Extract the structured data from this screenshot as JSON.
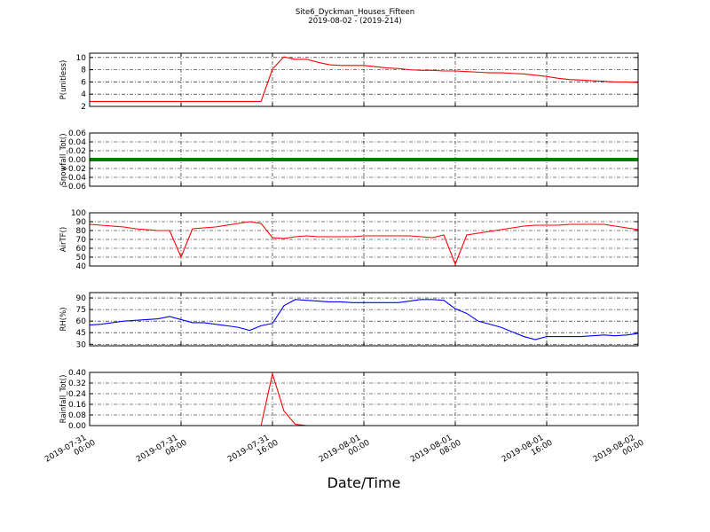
{
  "title": "Site6_Dyckman_Houses_Fifteen",
  "subtitle": "2019-08-02 - (2019-214)",
  "xlabel": "Date/Time",
  "chart_data": [
    {
      "type": "line",
      "ylabel": "P(unitless)",
      "xlim": [
        "2019-07-31 00:00",
        "2019-08-02 00:00"
      ],
      "ylim": [
        2,
        10.7
      ],
      "yticks": [
        2,
        4,
        6,
        8,
        10
      ],
      "grid": true,
      "x": [
        "2019-07-31 00:00",
        "2019-07-31 01:00",
        "2019-07-31 02:00",
        "2019-07-31 03:00",
        "2019-07-31 04:00",
        "2019-07-31 05:00",
        "2019-07-31 06:00",
        "2019-07-31 07:00",
        "2019-07-31 08:00",
        "2019-07-31 09:00",
        "2019-07-31 10:00",
        "2019-07-31 11:00",
        "2019-07-31 12:00",
        "2019-07-31 13:00",
        "2019-07-31 14:00",
        "2019-07-31 15:00",
        "2019-07-31 16:00",
        "2019-07-31 17:00",
        "2019-07-31 18:00",
        "2019-07-31 19:00",
        "2019-07-31 20:00",
        "2019-07-31 21:00",
        "2019-07-31 22:00",
        "2019-07-31 23:00",
        "2019-08-01 00:00",
        "2019-08-01 01:00",
        "2019-08-01 02:00",
        "2019-08-01 03:00",
        "2019-08-01 04:00",
        "2019-08-01 05:00",
        "2019-08-01 06:00",
        "2019-08-01 07:00",
        "2019-08-01 08:00",
        "2019-08-01 09:00",
        "2019-08-01 10:00",
        "2019-08-01 11:00",
        "2019-08-01 12:00",
        "2019-08-01 13:00",
        "2019-08-01 14:00",
        "2019-08-01 15:00",
        "2019-08-01 16:00",
        "2019-08-01 17:00",
        "2019-08-01 18:00",
        "2019-08-01 19:00",
        "2019-08-01 20:00",
        "2019-08-01 21:00",
        "2019-08-01 22:00",
        "2019-08-01 23:00",
        "2019-08-02 00:00"
      ],
      "series": [
        {
          "color": "#ff0000",
          "values": [
            2.8,
            2.8,
            2.8,
            2.8,
            2.8,
            2.8,
            2.8,
            2.8,
            2.8,
            2.8,
            2.8,
            2.8,
            2.8,
            2.8,
            2.8,
            2.8,
            8.1,
            10.1,
            9.7,
            9.7,
            9.2,
            8.8,
            8.7,
            8.7,
            8.7,
            8.5,
            8.3,
            8.2,
            8.0,
            7.9,
            7.9,
            7.8,
            7.8,
            7.7,
            7.6,
            7.5,
            7.5,
            7.4,
            7.3,
            7.1,
            6.9,
            6.6,
            6.4,
            6.3,
            6.2,
            6.1,
            6.0,
            6.0,
            5.9
          ]
        }
      ]
    },
    {
      "type": "line",
      "ylabel": "Snowfall_Tot()",
      "xlim": [
        "2019-07-31 00:00",
        "2019-08-02 00:00"
      ],
      "ylim": [
        -0.06,
        0.06
      ],
      "yticks": [
        {
          "value": -0.06,
          "label": "−0.06"
        },
        {
          "value": -0.04,
          "label": "−0.04"
        },
        {
          "value": -0.02,
          "label": "−0.02"
        },
        {
          "value": 0,
          "label": "0.00"
        },
        0.02,
        0.04,
        0.06
      ],
      "grid": true,
      "x": [
        "2019-07-31 00:00",
        "2019-07-31 01:00",
        "2019-07-31 02:00",
        "2019-07-31 03:00",
        "2019-07-31 04:00",
        "2019-07-31 05:00",
        "2019-07-31 06:00",
        "2019-07-31 07:00",
        "2019-07-31 08:00",
        "2019-07-31 09:00",
        "2019-07-31 10:00",
        "2019-07-31 11:00",
        "2019-07-31 12:00",
        "2019-07-31 13:00",
        "2019-07-31 14:00",
        "2019-07-31 15:00",
        "2019-07-31 16:00",
        "2019-07-31 17:00",
        "2019-07-31 18:00",
        "2019-07-31 19:00",
        "2019-07-31 20:00",
        "2019-07-31 21:00",
        "2019-07-31 22:00",
        "2019-07-31 23:00",
        "2019-08-01 00:00",
        "2019-08-01 01:00",
        "2019-08-01 02:00",
        "2019-08-01 03:00",
        "2019-08-01 04:00",
        "2019-08-01 05:00",
        "2019-08-01 06:00",
        "2019-08-01 07:00",
        "2019-08-01 08:00",
        "2019-08-01 09:00",
        "2019-08-01 10:00",
        "2019-08-01 11:00",
        "2019-08-01 12:00",
        "2019-08-01 13:00",
        "2019-08-01 14:00",
        "2019-08-01 15:00",
        "2019-08-01 16:00",
        "2019-08-01 17:00",
        "2019-08-01 18:00",
        "2019-08-01 19:00",
        "2019-08-01 20:00",
        "2019-08-01 21:00",
        "2019-08-01 22:00",
        "2019-08-01 23:00",
        "2019-08-02 00:00"
      ],
      "series": [
        {
          "color": "#007f00",
          "values": [
            0,
            0,
            0,
            0,
            0,
            0,
            0,
            0,
            0,
            0,
            0,
            0,
            0,
            0,
            0,
            0,
            0,
            0,
            0,
            0,
            0,
            0,
            0,
            0,
            0,
            0,
            0,
            0,
            0,
            0,
            0,
            0,
            0,
            0,
            0,
            0,
            0,
            0,
            0,
            0,
            0,
            0,
            0,
            0,
            0,
            0,
            0,
            0,
            0
          ]
        }
      ]
    },
    {
      "type": "line",
      "ylabel": "AirTF()",
      "xlim": [
        "2019-07-31 00:00",
        "2019-08-02 00:00"
      ],
      "ylim": [
        40,
        100
      ],
      "yticks": [
        40,
        50,
        60,
        70,
        80,
        90,
        100
      ],
      "grid": true,
      "x": [
        "2019-07-31 00:00",
        "2019-07-31 01:00",
        "2019-07-31 02:00",
        "2019-07-31 03:00",
        "2019-07-31 04:00",
        "2019-07-31 05:00",
        "2019-07-31 06:00",
        "2019-07-31 07:00",
        "2019-07-31 08:00",
        "2019-07-31 09:00",
        "2019-07-31 10:00",
        "2019-07-31 11:00",
        "2019-07-31 12:00",
        "2019-07-31 13:00",
        "2019-07-31 14:00",
        "2019-07-31 15:00",
        "2019-07-31 16:00",
        "2019-07-31 17:00",
        "2019-07-31 18:00",
        "2019-07-31 19:00",
        "2019-07-31 20:00",
        "2019-07-31 21:00",
        "2019-07-31 22:00",
        "2019-07-31 23:00",
        "2019-08-01 00:00",
        "2019-08-01 01:00",
        "2019-08-01 02:00",
        "2019-08-01 03:00",
        "2019-08-01 04:00",
        "2019-08-01 05:00",
        "2019-08-01 06:00",
        "2019-08-01 07:00",
        "2019-08-01 08:00",
        "2019-08-01 09:00",
        "2019-08-01 10:00",
        "2019-08-01 11:00",
        "2019-08-01 12:00",
        "2019-08-01 13:00",
        "2019-08-01 14:00",
        "2019-08-01 15:00",
        "2019-08-01 16:00",
        "2019-08-01 17:00",
        "2019-08-01 18:00",
        "2019-08-01 19:00",
        "2019-08-01 20:00",
        "2019-08-01 21:00",
        "2019-08-01 22:00",
        "2019-08-01 23:00",
        "2019-08-02 00:00"
      ],
      "series": [
        {
          "color": "#ff0000",
          "values": [
            87,
            86,
            85,
            84,
            82,
            81,
            80,
            80,
            50,
            82,
            83,
            84,
            86,
            88,
            90,
            88,
            72,
            71,
            73,
            74,
            73,
            73,
            73,
            73,
            74,
            74,
            74,
            74,
            74,
            73,
            72,
            75,
            42,
            75,
            77,
            79,
            81,
            83,
            85,
            86,
            86,
            86,
            87,
            87,
            87,
            87,
            85,
            83,
            81
          ]
        }
      ]
    },
    {
      "type": "line",
      "ylabel": "RH(%)",
      "xlim": [
        "2019-07-31 00:00",
        "2019-08-02 00:00"
      ],
      "ylim": [
        28,
        97
      ],
      "yticks": [
        30,
        45,
        60,
        75,
        90
      ],
      "grid": true,
      "x": [
        "2019-07-31 00:00",
        "2019-07-31 01:00",
        "2019-07-31 02:00",
        "2019-07-31 03:00",
        "2019-07-31 04:00",
        "2019-07-31 05:00",
        "2019-07-31 06:00",
        "2019-07-31 07:00",
        "2019-07-31 08:00",
        "2019-07-31 09:00",
        "2019-07-31 10:00",
        "2019-07-31 11:00",
        "2019-07-31 12:00",
        "2019-07-31 13:00",
        "2019-07-31 14:00",
        "2019-07-31 15:00",
        "2019-07-31 16:00",
        "2019-07-31 17:00",
        "2019-07-31 18:00",
        "2019-07-31 19:00",
        "2019-07-31 20:00",
        "2019-07-31 21:00",
        "2019-07-31 22:00",
        "2019-07-31 23:00",
        "2019-08-01 00:00",
        "2019-08-01 01:00",
        "2019-08-01 02:00",
        "2019-08-01 03:00",
        "2019-08-01 04:00",
        "2019-08-01 05:00",
        "2019-08-01 06:00",
        "2019-08-01 07:00",
        "2019-08-01 08:00",
        "2019-08-01 09:00",
        "2019-08-01 10:00",
        "2019-08-01 11:00",
        "2019-08-01 12:00",
        "2019-08-01 13:00",
        "2019-08-01 14:00",
        "2019-08-01 15:00",
        "2019-08-01 16:00",
        "2019-08-01 17:00",
        "2019-08-01 18:00",
        "2019-08-01 19:00",
        "2019-08-01 20:00",
        "2019-08-01 21:00",
        "2019-08-01 22:00",
        "2019-08-01 23:00",
        "2019-08-02 00:00"
      ],
      "series": [
        {
          "color": "#0000ff",
          "values": [
            55,
            56,
            58,
            60,
            61,
            62,
            63,
            66,
            62,
            58,
            58,
            56,
            54,
            52,
            48,
            54,
            57,
            80,
            88,
            87,
            86,
            85,
            85,
            84,
            84,
            84,
            84,
            84,
            86,
            88,
            88,
            87,
            76,
            70,
            60,
            56,
            52,
            46,
            40,
            36,
            40,
            40,
            40,
            40,
            41,
            42,
            41,
            42,
            44
          ]
        }
      ]
    },
    {
      "type": "line",
      "ylabel": "Rainfall_Tot()",
      "xlim": [
        "2019-07-31 00:00",
        "2019-08-02 00:00"
      ],
      "ylim": [
        0,
        0.4
      ],
      "yticks": [
        {
          "value": 0,
          "label": "0.00"
        },
        0.08,
        0.16,
        0.24,
        0.32,
        {
          "value": 0.4,
          "label": "0.40"
        }
      ],
      "grid": true,
      "xticks": [
        "2019-07-31 00:00",
        "2019-07-31 08:00",
        "2019-07-31 16:00",
        "2019-08-01 00:00",
        "2019-08-01 08:00",
        "2019-08-01 16:00",
        "2019-08-02 00:00"
      ],
      "x": [
        "2019-07-31 00:00",
        "2019-07-31 01:00",
        "2019-07-31 02:00",
        "2019-07-31 03:00",
        "2019-07-31 04:00",
        "2019-07-31 05:00",
        "2019-07-31 06:00",
        "2019-07-31 07:00",
        "2019-07-31 08:00",
        "2019-07-31 09:00",
        "2019-07-31 10:00",
        "2019-07-31 11:00",
        "2019-07-31 12:00",
        "2019-07-31 13:00",
        "2019-07-31 14:00",
        "2019-07-31 15:00",
        "2019-07-31 16:00",
        "2019-07-31 17:00",
        "2019-07-31 18:00",
        "2019-07-31 19:00",
        "2019-07-31 20:00",
        "2019-07-31 21:00",
        "2019-07-31 22:00",
        "2019-07-31 23:00",
        "2019-08-01 00:00",
        "2019-08-01 01:00",
        "2019-08-01 02:00",
        "2019-08-01 03:00",
        "2019-08-01 04:00",
        "2019-08-01 05:00",
        "2019-08-01 06:00",
        "2019-08-01 07:00",
        "2019-08-01 08:00",
        "2019-08-01 09:00",
        "2019-08-01 10:00",
        "2019-08-01 11:00",
        "2019-08-01 12:00",
        "2019-08-01 13:00",
        "2019-08-01 14:00",
        "2019-08-01 15:00",
        "2019-08-01 16:00",
        "2019-08-01 17:00",
        "2019-08-01 18:00",
        "2019-08-01 19:00",
        "2019-08-01 20:00",
        "2019-08-01 21:00",
        "2019-08-01 22:00",
        "2019-08-01 23:00",
        "2019-08-02 00:00"
      ],
      "series": [
        {
          "color": "#ff0000",
          "values": [
            0,
            0,
            0,
            0,
            0,
            0,
            0,
            0,
            0,
            0,
            0,
            0,
            0,
            0,
            0,
            0,
            0.39,
            0.11,
            0.01,
            0,
            0,
            0,
            0,
            0,
            0,
            0,
            0,
            0,
            0,
            0,
            0,
            0,
            0,
            0,
            0,
            0,
            0,
            0,
            0,
            0,
            0,
            0,
            0,
            0,
            0,
            0,
            0,
            0,
            0
          ]
        }
      ]
    }
  ]
}
